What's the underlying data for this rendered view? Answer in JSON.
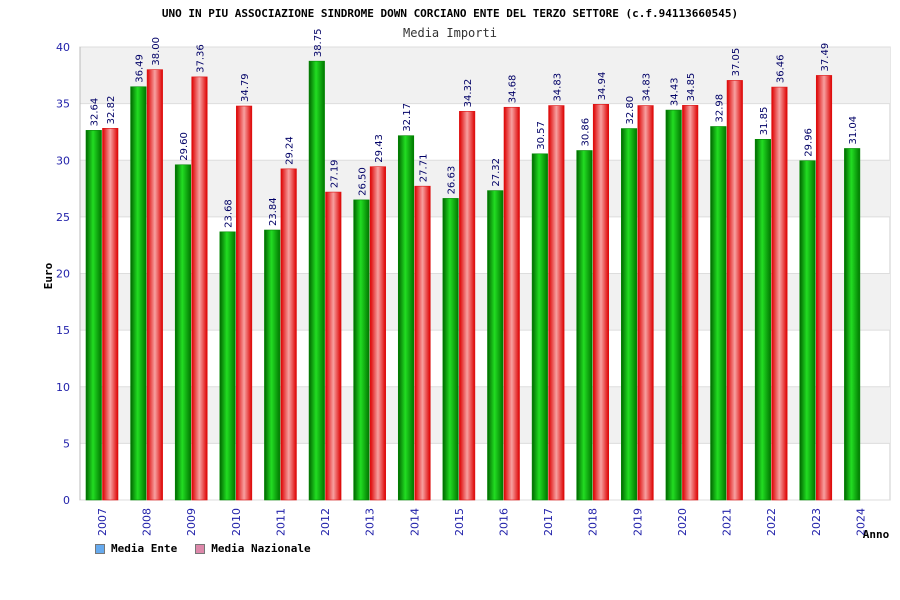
{
  "chart_data": {
    "type": "bar",
    "title": "UNO IN PIU ASSOCIAZIONE SINDROME DOWN CORCIANO ENTE DEL TERZO SETTORE (c.f.94113660545)",
    "subtitle": "Media Importi",
    "ylabel": "Euro",
    "xlabel": "Anno",
    "ylim": [
      0,
      40
    ],
    "yticks": [
      0,
      5,
      10,
      15,
      20,
      25,
      30,
      35,
      40
    ],
    "grid": true,
    "legend_position": "bottom-left",
    "categories": [
      "2007",
      "2008",
      "2009",
      "2010",
      "2011",
      "2012",
      "2013",
      "2014",
      "2015",
      "2016",
      "2017",
      "2018",
      "2019",
      "2020",
      "2021",
      "2022",
      "2023",
      "2024"
    ],
    "series": [
      {
        "name": "Media Ente",
        "color": "#00aa00",
        "legend_color": "#66aaee",
        "values": [
          32.64,
          36.49,
          29.6,
          23.68,
          23.84,
          38.75,
          26.5,
          32.17,
          26.63,
          27.32,
          30.57,
          30.86,
          32.8,
          34.43,
          32.98,
          31.85,
          29.96,
          31.04
        ],
        "labels": [
          "32.64",
          "36.49",
          "29.60",
          "23.68",
          "23.84",
          "38.75",
          "26.50",
          "32.17",
          "26.63",
          "27.32",
          "30.57",
          "30.86",
          "32.80",
          "34.43",
          "32.98",
          "31.85",
          "29.96",
          "31.04"
        ]
      },
      {
        "name": "Media Nazionale",
        "color": "#ee2222",
        "legend_color": "#dd88aa",
        "values": [
          32.82,
          38.0,
          37.36,
          34.79,
          29.24,
          27.19,
          29.43,
          27.71,
          34.32,
          34.68,
          34.83,
          34.94,
          34.83,
          34.85,
          37.05,
          36.46,
          37.49,
          null
        ],
        "labels": [
          "32.82",
          "38.00",
          "37.36",
          "34.79",
          "29.24",
          "27.19",
          "29.43",
          "27.71",
          "34.32",
          "34.68",
          "34.83",
          "34.94",
          "34.83",
          "34.85",
          "37.05",
          "36.46",
          "37.49",
          ""
        ]
      }
    ]
  }
}
